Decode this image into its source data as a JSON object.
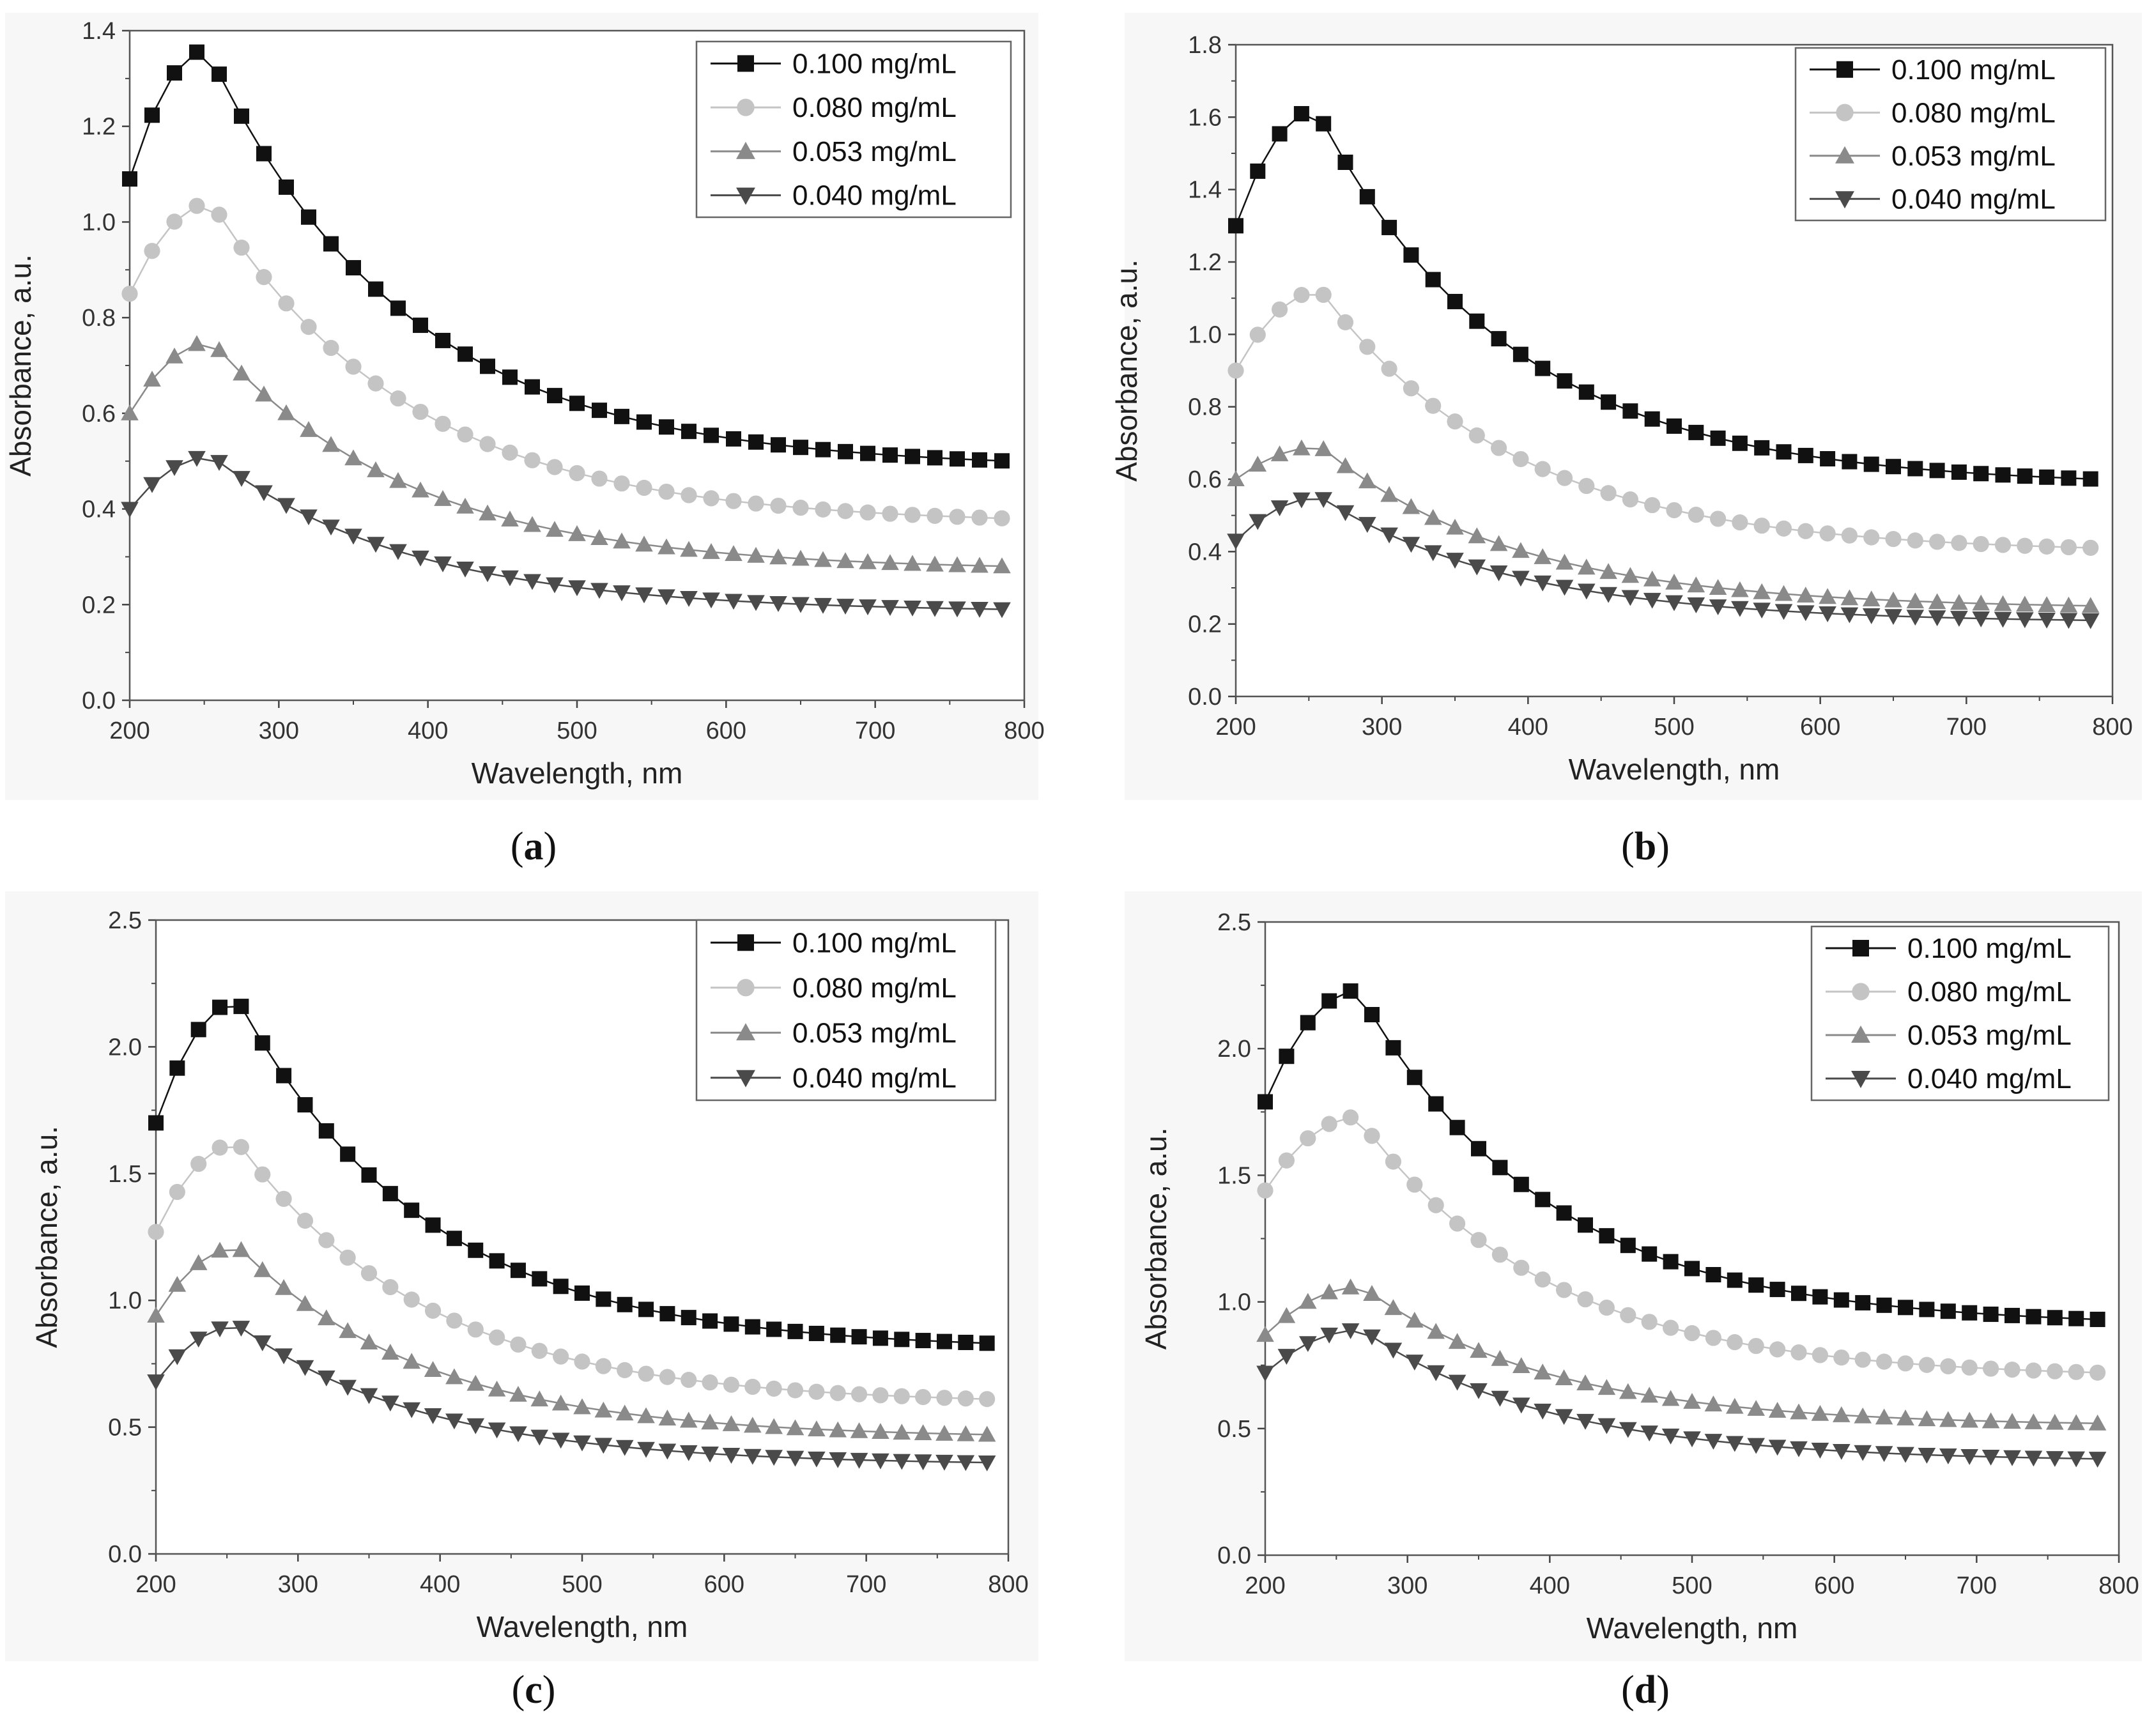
{
  "chart_data": [
    {
      "type": "line",
      "caption_label": "a",
      "xlabel": "Wavelength, nm",
      "ylabel": "Absorbance, a.u.",
      "xlim": [
        200,
        800
      ],
      "ylim": [
        0.0,
        1.4
      ],
      "x_ticks": [
        "200",
        "300",
        "400",
        "500",
        "600",
        "700",
        "800"
      ],
      "y_ticks": [
        "0.0",
        "0.2",
        "0.4",
        "0.6",
        "0.8",
        "1.0",
        "1.2",
        "1.4"
      ],
      "legend_position": "top-right",
      "series": [
        {
          "name": "0.100 mg/mL",
          "marker": "square",
          "color": "#111111",
          "peak_x": 252,
          "peak": 1.36,
          "start": 1.09,
          "end": 0.5
        },
        {
          "name": "0.080 mg/mL",
          "marker": "circle",
          "color": "#c4c4c4",
          "peak_x": 255,
          "peak": 1.04,
          "start": 0.85,
          "end": 0.38
        },
        {
          "name": "0.053 mg/mL",
          "marker": "triangle-up",
          "color": "#8a8a8a",
          "peak_x": 255,
          "peak": 0.75,
          "start": 0.6,
          "end": 0.28
        },
        {
          "name": "0.040 mg/mL",
          "marker": "triangle-down",
          "color": "#4a4a4a",
          "peak_x": 255,
          "peak": 0.51,
          "start": 0.4,
          "end": 0.19
        }
      ]
    },
    {
      "type": "line",
      "caption_label": "b",
      "xlabel": "Wavelength, nm",
      "ylabel": "Absorbance, a.u.",
      "xlim": [
        200,
        800
      ],
      "ylim": [
        0.0,
        1.8
      ],
      "x_ticks": [
        "200",
        "300",
        "400",
        "500",
        "600",
        "700",
        "800"
      ],
      "y_ticks": [
        "0.0",
        "0.2",
        "0.4",
        "0.6",
        "0.8",
        "1.0",
        "1.2",
        "1.4",
        "1.6",
        "1.8"
      ],
      "legend_position": "top-right",
      "series": [
        {
          "name": "0.100 mg/mL",
          "marker": "square",
          "color": "#111111",
          "peak_x": 255,
          "peak": 1.62,
          "start": 1.3,
          "end": 0.6
        },
        {
          "name": "0.080 mg/mL",
          "marker": "circle",
          "color": "#c4c4c4",
          "peak_x": 258,
          "peak": 1.12,
          "start": 0.9,
          "end": 0.41
        },
        {
          "name": "0.053 mg/mL",
          "marker": "triangle-up",
          "color": "#8a8a8a",
          "peak_x": 258,
          "peak": 0.69,
          "start": 0.6,
          "end": 0.25
        },
        {
          "name": "0.040 mg/mL",
          "marker": "triangle-down",
          "color": "#4a4a4a",
          "peak_x": 258,
          "peak": 0.55,
          "start": 0.43,
          "end": 0.21
        }
      ]
    },
    {
      "type": "line",
      "caption_label": "c",
      "xlabel": "Wavelength, nm",
      "ylabel": "Absorbance, a.u.",
      "xlim": [
        200,
        800
      ],
      "ylim": [
        0.0,
        2.5
      ],
      "x_ticks": [
        "200",
        "300",
        "400",
        "500",
        "600",
        "700",
        "800"
      ],
      "y_ticks": [
        "0.0",
        "0.5",
        "1.0",
        "1.5",
        "2.0",
        "2.5"
      ],
      "legend_position": "top-right",
      "series": [
        {
          "name": "0.100 mg/mL",
          "marker": "square",
          "color": "#111111",
          "peak_x": 258,
          "peak": 2.18,
          "start": 1.7,
          "end": 0.83
        },
        {
          "name": "0.080 mg/mL",
          "marker": "circle",
          "color": "#c4c4c4",
          "peak_x": 258,
          "peak": 1.62,
          "start": 1.27,
          "end": 0.61
        },
        {
          "name": "0.053 mg/mL",
          "marker": "triangle-up",
          "color": "#8a8a8a",
          "peak_x": 258,
          "peak": 1.21,
          "start": 0.94,
          "end": 0.47
        },
        {
          "name": "0.040 mg/mL",
          "marker": "triangle-down",
          "color": "#4a4a4a",
          "peak_x": 258,
          "peak": 0.9,
          "start": 0.68,
          "end": 0.36
        }
      ]
    },
    {
      "type": "line",
      "caption_label": "d",
      "xlabel": "Wavelength, nm",
      "ylabel": "Absorbance, a.u.",
      "xlim": [
        200,
        800
      ],
      "ylim": [
        0.0,
        2.5
      ],
      "x_ticks": [
        "200",
        "300",
        "400",
        "500",
        "600",
        "700",
        "800"
      ],
      "y_ticks": [
        "0.0",
        "0.5",
        "1.0",
        "1.5",
        "2.0",
        "2.5"
      ],
      "legend_position": "top-right",
      "series": [
        {
          "name": "0.100 mg/mL",
          "marker": "square",
          "color": "#111111",
          "peak_x": 265,
          "peak": 2.23,
          "start": 1.79,
          "end": 0.93
        },
        {
          "name": "0.080 mg/mL",
          "marker": "circle",
          "color": "#c4c4c4",
          "peak_x": 265,
          "peak": 1.73,
          "start": 1.44,
          "end": 0.72
        },
        {
          "name": "0.053 mg/mL",
          "marker": "triangle-up",
          "color": "#8a8a8a",
          "peak_x": 268,
          "peak": 1.06,
          "start": 0.87,
          "end": 0.52
        },
        {
          "name": "0.040 mg/mL",
          "marker": "triangle-down",
          "color": "#4a4a4a",
          "peak_x": 268,
          "peak": 0.89,
          "start": 0.72,
          "end": 0.38
        }
      ]
    }
  ]
}
